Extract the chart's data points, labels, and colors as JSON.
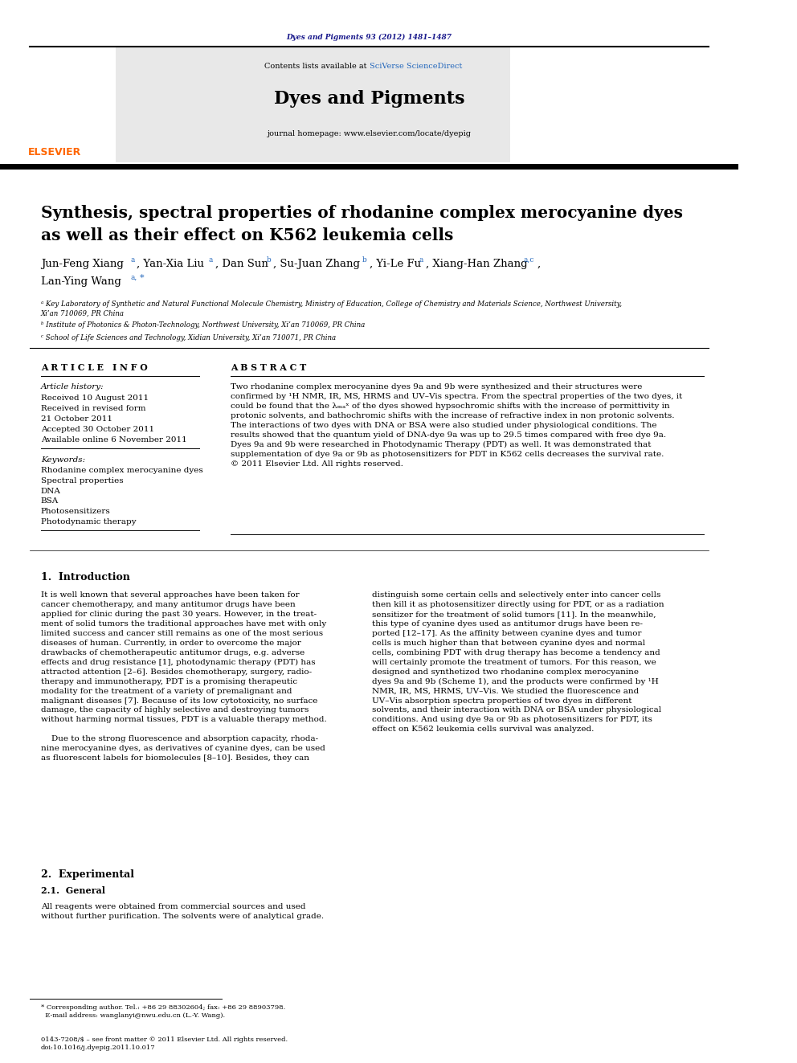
{
  "page_width": 9.92,
  "page_height": 13.23,
  "bg_color": "#ffffff",
  "header_journal_ref": "Dyes and Pigments 93 (2012) 1481–1487",
  "header_journal_ref_color": "#1a1a8c",
  "journal_name": "Dyes and Pigments",
  "journal_homepage": "journal homepage: www.elsevier.com/locate/dyepig",
  "sciverse_color": "#2266bb",
  "elsevier_color": "#ff6600",
  "header_bg": "#e8e8e8",
  "title_line1": "Synthesis, spectral properties of rhodanine complex merocyanine dyes",
  "title_line2": "as well as their effect on K562 leukemia cells",
  "affil_a": "ᵃ Key Laboratory of Synthetic and Natural Functional Molecule Chemistry, Ministry of Education, College of Chemistry and Materials Science, Northwest University,\nXi’an 710069, PR China",
  "affil_b": "ᵇ Institute of Photonics & Photon-Technology, Northwest University, Xi’an 710069, PR China",
  "affil_c": "ᶜ School of Life Sciences and Technology, Xidian University, Xi’an 710071, PR China",
  "article_info_header": "A R T I C L E   I N F O",
  "abstract_header": "A B S T R A C T",
  "article_history_label": "Article history:",
  "received_1": "Received 10 August 2011",
  "received_revised": "Received in revised form",
  "received_revised_date": "21 October 2011",
  "accepted": "Accepted 30 October 2011",
  "available_online": "Available online 6 November 2011",
  "keywords_label": "Keywords:",
  "keyword_1": "Rhodanine complex merocyanine dyes",
  "keyword_2": "Spectral properties",
  "keyword_3": "DNA",
  "keyword_4": "BSA",
  "keyword_5": "Photosensitizers",
  "keyword_6": "Photodynamic therapy",
  "abstract_text": "Two rhodanine complex merocyanine dyes 9a and 9b were synthesized and their structures were\nconfirmed by ¹H NMR, IR, MS, HRMS and UV–Vis spectra. From the spectral properties of the two dyes, it\ncould be found that the λₘₐˣ of the dyes showed hypsochromic shifts with the increase of permittivity in\nprotonic solvents, and bathochromic shifts with the increase of refractive index in non protonic solvents.\nThe interactions of two dyes with DNA or BSA were also studied under physiological conditions. The\nresults showed that the quantum yield of DNA-dye 9a was up to 29.5 times compared with free dye 9a.\nDyes 9a and 9b were researched in Photodynamic Therapy (PDT) as well. It was demonstrated that\nsupplementation of dye 9a or 9b as photosensitizers for PDT in K562 cells decreases the survival rate.\n© 2011 Elsevier Ltd. All rights reserved.",
  "intro_header": "1.  Introduction",
  "intro_col1": "It is well known that several approaches have been taken for\ncancer chemotherapy, and many antitumor drugs have been\napplied for clinic during the past 30 years. However, in the treat-\nment of solid tumors the traditional approaches have met with only\nlimited success and cancer still remains as one of the most serious\ndiseases of human. Currently, in order to overcome the major\ndrawbacks of chemotherapeutic antitumor drugs, e.g. adverse\neffects and drug resistance [1], photodynamic therapy (PDT) has\nattracted attention [2–6]. Besides chemotherapy, surgery, radio-\ntherapy and immunotherapy, PDT is a promising therapeutic\nmodality for the treatment of a variety of premalignant and\nmalignant diseases [7]. Because of its low cytotoxicity, no surface\ndamage, the capacity of highly selective and destroying tumors\nwithout harming normal tissues, PDT is a valuable therapy method.\n\n    Due to the strong fluorescence and absorption capacity, rhoda-\nnine merocyanine dyes, as derivatives of cyanine dyes, can be used\nas fluorescent labels for biomolecules [8–10]. Besides, they can",
  "intro_col2": "distinguish some certain cells and selectively enter into cancer cells\nthen kill it as photosensitizer directly using for PDT, or as a radiation\nsensitizer for the treatment of solid tumors [11]. In the meanwhile,\nthis type of cyanine dyes used as antitumor drugs have been re-\nported [12–17]. As the affinity between cyanine dyes and tumor\ncells is much higher than that between cyanine dyes and normal\ncells, combining PDT with drug therapy has become a tendency and\nwill certainly promote the treatment of tumors. For this reason, we\ndesigned and synthetized two rhodanine complex merocyanine\ndyes 9a and 9b (Scheme 1), and the products were confirmed by ¹H\nNMR, IR, MS, HRMS, UV–Vis. We studied the fluorescence and\nUV–Vis absorption spectra properties of two dyes in different\nsolvents, and their interaction with DNA or BSA under physiological\nconditions. And using dye 9a or 9b as photosensitizers for PDT, its\neffect on K562 leukemia cells survival was analyzed.",
  "experimental_header": "2.  Experimental",
  "experimental_sub": "2.1.  General",
  "experimental_text": "All reagents were obtained from commercial sources and used\nwithout further purification. The solvents were of analytical grade.",
  "footnote_corresponding": "* Corresponding author. Tel.: +86 29 88302604; fax: +86 29 88903798.\n  E-mail address: wanglanyi@nwu.edu.cn (L.-Y. Wang).",
  "issn_line": "0143-7208/$ – see front matter © 2011 Elsevier Ltd. All rights reserved.\ndoi:10.1016/j.dyepig.2011.10.017"
}
